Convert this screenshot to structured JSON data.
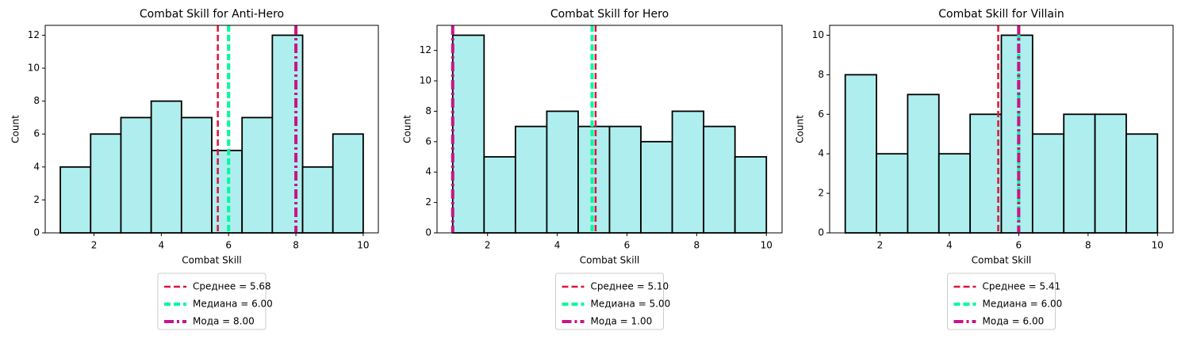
{
  "chart_data": [
    {
      "type": "histogram",
      "title": "Combat Skill for Anti-Hero",
      "xlabel": "Combat Skill",
      "ylabel": "Count",
      "bins": [
        1,
        1.9,
        2.8,
        3.7,
        4.6,
        5.5,
        6.4,
        7.3,
        8.2,
        9.1,
        10
      ],
      "counts": [
        4,
        6,
        7,
        8,
        7,
        5,
        7,
        12,
        4,
        6
      ],
      "color": "#afeeee",
      "edgecolor": "#000000",
      "xlim": [
        0.55,
        10.45
      ],
      "xticks": [
        2,
        4,
        6,
        8,
        10
      ],
      "ylim": [
        0,
        12.6
      ],
      "yticks": [
        0,
        2,
        4,
        6,
        8,
        10,
        12
      ],
      "lines": [
        {
          "name": "Среднее = 5.68",
          "value": 5.68,
          "color": "#dc143c",
          "style": "dashed"
        },
        {
          "name": "Медиана = 6.00",
          "value": 6,
          "color": "#00fa9a",
          "style": "dashed"
        },
        {
          "name": "Мода = 8.00",
          "value": 8,
          "color": "#c71585",
          "style": "dashdot"
        }
      ]
    },
    {
      "type": "histogram",
      "title": "Combat Skill for Hero",
      "xlabel": "Combat Skill",
      "ylabel": "Count",
      "bins": [
        1,
        1.9,
        2.8,
        3.7,
        4.6,
        5.5,
        6.4,
        7.3,
        8.2,
        9.1,
        10
      ],
      "counts": [
        13,
        5,
        7,
        8,
        7,
        7,
        6,
        8,
        7,
        5
      ],
      "color": "#afeeee",
      "edgecolor": "#000000",
      "xlim": [
        0.55,
        10.45
      ],
      "xticks": [
        2,
        4,
        6,
        8,
        10
      ],
      "ylim": [
        0,
        13.65
      ],
      "yticks": [
        0,
        2,
        4,
        6,
        8,
        10,
        12
      ],
      "lines": [
        {
          "name": "Среднее = 5.10",
          "value": 5.1,
          "color": "#dc143c",
          "style": "dashed"
        },
        {
          "name": "Медиана = 5.00",
          "value": 5,
          "color": "#00fa9a",
          "style": "dashed"
        },
        {
          "name": "Мода = 1.00",
          "value": 1,
          "color": "#c71585",
          "style": "dashdot"
        }
      ]
    },
    {
      "type": "histogram",
      "title": "Combat Skill for Villain",
      "xlabel": "Combat Skill",
      "ylabel": "Count",
      "bins": [
        1,
        1.9,
        2.8,
        3.7,
        4.6,
        5.5,
        6.4,
        7.3,
        8.2,
        9.1,
        10
      ],
      "counts": [
        8,
        4,
        7,
        4,
        6,
        10,
        5,
        6,
        6,
        5
      ],
      "color": "#afeeee",
      "edgecolor": "#000000",
      "xlim": [
        0.55,
        10.45
      ],
      "xticks": [
        2,
        4,
        6,
        8,
        10
      ],
      "ylim": [
        0,
        10.5
      ],
      "yticks": [
        0,
        2,
        4,
        6,
        8,
        10
      ],
      "lines": [
        {
          "name": "Среднее = 5.41",
          "value": 5.41,
          "color": "#dc143c",
          "style": "dashed"
        },
        {
          "name": "Медиана = 6.00",
          "value": 6,
          "color": "#00fa9a",
          "style": "dashed"
        },
        {
          "name": "Мода = 6.00",
          "value": 6,
          "color": "#c71585",
          "style": "dashdot"
        }
      ]
    }
  ]
}
